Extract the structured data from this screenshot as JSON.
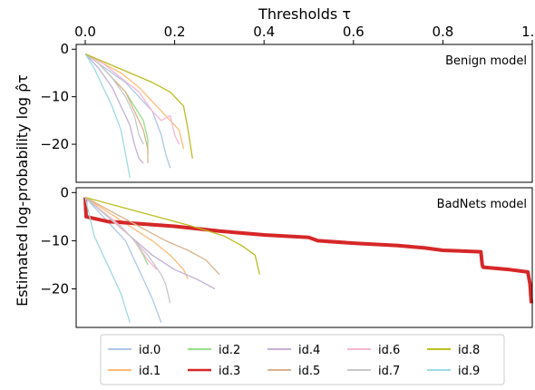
{
  "chart_data": {
    "type": "line",
    "xlabel": "Thresholds τ",
    "ylabel": "Estimated log-probability log ρ̂τ",
    "xlim": [
      0,
      1
    ],
    "x_ticks": [
      "0.0",
      "0.2",
      "0.4",
      "0.6",
      "0.8",
      "1.0"
    ],
    "x_tick_values": [
      0,
      0.2,
      0.4,
      0.6,
      0.8,
      1.0
    ],
    "x_axis_position": "top",
    "legend": {
      "placement": "bottom",
      "columns": 5
    },
    "colors": [
      "#aec7e8",
      "#ffbb78",
      "#98df8a",
      "#d62728",
      "#c5b0d5",
      "#dbb38d",
      "#f7b6d2",
      "#c7c7c7",
      "#bcbd22",
      "#9edae5"
    ],
    "panels": [
      {
        "title": "Benign model",
        "ylim": [
          -28,
          1
        ],
        "y_ticks": [
          "0",
          "−10",
          "−20"
        ],
        "y_tick_values": [
          0,
          -10,
          -20
        ],
        "series": [
          {
            "name": "id.0",
            "points": [
              [
                0.0,
                -1
              ],
              [
                0.03,
                -3
              ],
              [
                0.06,
                -5
              ],
              [
                0.09,
                -7
              ],
              [
                0.12,
                -10
              ],
              [
                0.15,
                -13
              ],
              [
                0.17,
                -18
              ],
              [
                0.18,
                -22
              ],
              [
                0.19,
                -25
              ]
            ]
          },
          {
            "name": "id.1",
            "points": [
              [
                0.0,
                -1
              ],
              [
                0.04,
                -3
              ],
              [
                0.08,
                -5
              ],
              [
                0.12,
                -8
              ],
              [
                0.15,
                -11
              ],
              [
                0.18,
                -14
              ],
              [
                0.21,
                -17
              ],
              [
                0.22,
                -21
              ]
            ]
          },
          {
            "name": "id.2",
            "points": [
              [
                0.0,
                -1
              ],
              [
                0.03,
                -3
              ],
              [
                0.06,
                -6
              ],
              [
                0.09,
                -9
              ],
              [
                0.11,
                -12
              ],
              [
                0.13,
                -15
              ],
              [
                0.14,
                -19
              ],
              [
                0.14,
                -22
              ]
            ]
          },
          {
            "name": "id.4",
            "points": [
              [
                0.0,
                -1
              ],
              [
                0.03,
                -4
              ],
              [
                0.06,
                -8
              ],
              [
                0.08,
                -12
              ],
              [
                0.1,
                -16
              ],
              [
                0.11,
                -20
              ],
              [
                0.12,
                -23
              ],
              [
                0.13,
                -24
              ]
            ]
          },
          {
            "name": "id.5",
            "points": [
              [
                0.0,
                -1
              ],
              [
                0.03,
                -3
              ],
              [
                0.06,
                -6
              ],
              [
                0.09,
                -9
              ],
              [
                0.11,
                -13
              ],
              [
                0.13,
                -17
              ],
              [
                0.14,
                -21
              ],
              [
                0.14,
                -24
              ]
            ]
          },
          {
            "name": "id.6",
            "points": [
              [
                0.0,
                -1
              ],
              [
                0.04,
                -3
              ],
              [
                0.08,
                -6
              ],
              [
                0.12,
                -9
              ],
              [
                0.15,
                -13
              ],
              [
                0.17,
                -15
              ],
              [
                0.19,
                -14
              ],
              [
                0.2,
                -18
              ],
              [
                0.21,
                -20
              ]
            ]
          },
          {
            "name": "id.7",
            "points": [
              [
                0.0,
                -1
              ],
              [
                0.03,
                -3
              ],
              [
                0.06,
                -6
              ],
              [
                0.09,
                -10
              ],
              [
                0.11,
                -14
              ],
              [
                0.12,
                -18
              ],
              [
                0.13,
                -20
              ]
            ]
          },
          {
            "name": "id.8",
            "points": [
              [
                0.0,
                -1
              ],
              [
                0.05,
                -3
              ],
              [
                0.1,
                -5
              ],
              [
                0.15,
                -7
              ],
              [
                0.19,
                -9
              ],
              [
                0.22,
                -12
              ],
              [
                0.23,
                -17
              ],
              [
                0.24,
                -23
              ]
            ]
          },
          {
            "name": "id.9",
            "points": [
              [
                0.0,
                -1
              ],
              [
                0.02,
                -4
              ],
              [
                0.04,
                -8
              ],
              [
                0.06,
                -12
              ],
              [
                0.08,
                -17
              ],
              [
                0.09,
                -22
              ],
              [
                0.1,
                -27
              ]
            ]
          }
        ]
      },
      {
        "title": "BadNets model",
        "ylim": [
          -28,
          1
        ],
        "y_ticks": [
          "0",
          "−10",
          "−20"
        ],
        "y_tick_values": [
          0,
          -10,
          -20
        ],
        "series": [
          {
            "name": "id.0",
            "points": [
              [
                0.0,
                -1
              ],
              [
                0.03,
                -4
              ],
              [
                0.06,
                -7
              ],
              [
                0.09,
                -10
              ],
              [
                0.11,
                -14
              ],
              [
                0.13,
                -18
              ],
              [
                0.15,
                -22
              ],
              [
                0.17,
                -27
              ]
            ]
          },
          {
            "name": "id.1",
            "points": [
              [
                0.0,
                -1
              ],
              [
                0.05,
                -4
              ],
              [
                0.1,
                -7
              ],
              [
                0.15,
                -10
              ],
              [
                0.19,
                -13
              ],
              [
                0.22,
                -16
              ],
              [
                0.23,
                -18
              ]
            ]
          },
          {
            "name": "id.2",
            "points": [
              [
                0.0,
                -1
              ],
              [
                0.04,
                -4
              ],
              [
                0.08,
                -7
              ],
              [
                0.11,
                -10
              ],
              [
                0.13,
                -13
              ],
              [
                0.14,
                -15
              ]
            ]
          },
          {
            "name": "id.3",
            "points": [
              [
                0.0,
                -1
              ],
              [
                0.002,
                -5
              ],
              [
                0.05,
                -6
              ],
              [
                0.2,
                -7
              ],
              [
                0.3,
                -8
              ],
              [
                0.4,
                -8.8
              ],
              [
                0.5,
                -9.3
              ],
              [
                0.52,
                -10
              ],
              [
                0.6,
                -10.5
              ],
              [
                0.7,
                -11
              ],
              [
                0.76,
                -11.5
              ],
              [
                0.8,
                -12
              ],
              [
                0.885,
                -12.3
              ],
              [
                0.888,
                -15
              ],
              [
                0.89,
                -15.5
              ],
              [
                0.95,
                -16
              ],
              [
                0.99,
                -16.5
              ],
              [
                0.995,
                -19
              ],
              [
                0.998,
                -23
              ]
            ]
          },
          {
            "name": "id.4",
            "points": [
              [
                0.0,
                -1
              ],
              [
                0.05,
                -5
              ],
              [
                0.1,
                -9
              ],
              [
                0.15,
                -13
              ],
              [
                0.2,
                -16
              ],
              [
                0.25,
                -18
              ],
              [
                0.29,
                -20
              ]
            ]
          },
          {
            "name": "id.5",
            "points": [
              [
                0.0,
                -1
              ],
              [
                0.06,
                -4
              ],
              [
                0.12,
                -7
              ],
              [
                0.18,
                -10
              ],
              [
                0.23,
                -12
              ],
              [
                0.27,
                -14
              ],
              [
                0.3,
                -17
              ]
            ]
          },
          {
            "name": "id.6",
            "points": [
              [
                0.0,
                -1
              ],
              [
                0.04,
                -4
              ],
              [
                0.08,
                -7
              ],
              [
                0.11,
                -10
              ],
              [
                0.14,
                -14
              ],
              [
                0.16,
                -16
              ]
            ]
          },
          {
            "name": "id.7",
            "points": [
              [
                0.0,
                -1
              ],
              [
                0.05,
                -5
              ],
              [
                0.1,
                -9
              ],
              [
                0.14,
                -13
              ],
              [
                0.17,
                -17
              ],
              [
                0.18,
                -19
              ],
              [
                0.19,
                -23
              ]
            ]
          },
          {
            "name": "id.8",
            "points": [
              [
                0.0,
                -1
              ],
              [
                0.08,
                -3
              ],
              [
                0.16,
                -5
              ],
              [
                0.24,
                -7
              ],
              [
                0.31,
                -9
              ],
              [
                0.35,
                -11
              ],
              [
                0.38,
                -13
              ],
              [
                0.39,
                -17
              ]
            ]
          },
          {
            "name": "id.9",
            "points": [
              [
                0.0,
                -1
              ],
              [
                0.01,
                -5
              ],
              [
                0.02,
                -9
              ],
              [
                0.04,
                -13
              ],
              [
                0.06,
                -17
              ],
              [
                0.08,
                -21
              ],
              [
                0.09,
                -24
              ],
              [
                0.1,
                -27
              ]
            ]
          }
        ]
      }
    ],
    "legend_entries": [
      "id.0",
      "id.1",
      "id.2",
      "id.3",
      "id.4",
      "id.5",
      "id.6",
      "id.7",
      "id.8",
      "id.9"
    ]
  }
}
